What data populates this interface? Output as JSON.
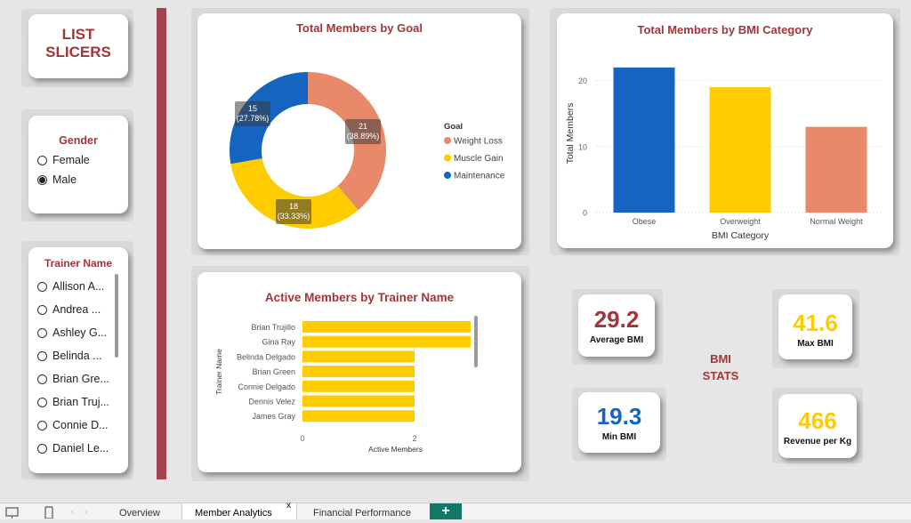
{
  "slicers_label": "LIST\nSLICERS",
  "gender": {
    "title": "Gender",
    "options": [
      {
        "label": "Female",
        "selected": false
      },
      {
        "label": "Male",
        "selected": true
      }
    ]
  },
  "trainer": {
    "title": "Trainer Name",
    "options": [
      "Allison A...",
      "Andrea ...",
      "Ashley G...",
      "Belinda ...",
      "Brian Gre...",
      "Brian Truj...",
      "Connie D...",
      "Daniel Le..."
    ]
  },
  "donut": {
    "chart_data": {
      "type": "pie",
      "title": "Total Members by Goal",
      "legend_title": "Goal",
      "slices": [
        {
          "label": "Weight Loss",
          "value": 21,
          "pct": "38.89%",
          "color": "#e8896a"
        },
        {
          "label": "Muscle Gain",
          "value": 18,
          "pct": "33.33%",
          "color": "#ffcc00"
        },
        {
          "label": "Maintenance",
          "value": 15,
          "pct": "27.78%",
          "color": "#1565c0"
        }
      ]
    }
  },
  "bmi_bar": {
    "chart_data": {
      "type": "bar",
      "title": "Total Members by BMI Category",
      "xlabel": "BMI Category",
      "ylabel": "Total Members",
      "categories": [
        "Obese",
        "Overweight",
        "Normal Weight"
      ],
      "values": [
        22,
        19,
        13
      ],
      "colors": [
        "#1565c0",
        "#ffcc00",
        "#e8896a"
      ],
      "yticks": [
        0,
        10,
        20
      ],
      "ylim": [
        0,
        24
      ]
    }
  },
  "trainer_bar": {
    "chart_data": {
      "type": "bar",
      "orientation": "horizontal",
      "title": "Active Members by Trainer Name",
      "xlabel": "Active Members",
      "ylabel": "Trainer Name",
      "categories": [
        "Brian Trujillo",
        "Gina Ray",
        "Belinda Delgado",
        "Brian Green",
        "Connie Delgado",
        "Dennis Velez",
        "James Gray"
      ],
      "values": [
        3,
        3,
        2,
        2,
        2,
        2,
        2
      ],
      "color": "#ffcc00",
      "xticks": [
        0,
        2
      ],
      "xlim": [
        0,
        3
      ]
    }
  },
  "kpis": {
    "avg_bmi": {
      "value": "29.2",
      "label": "Average BMI",
      "color": "#a4343a"
    },
    "max_bmi": {
      "value": "41.6",
      "label": "Max BMI",
      "color": "#ffcc00"
    },
    "min_bmi": {
      "value": "19.3",
      "label": "Min BMI",
      "color": "#1565c0"
    },
    "rev_kg": {
      "value": "466",
      "label": "Revenue per Kg",
      "color": "#ffcc00"
    }
  },
  "bmi_stats_label": "BMI\nSTATS",
  "tabs": {
    "overview": "Overview",
    "member_analytics": "Member Analytics",
    "close_mark": "x",
    "financial": "Financial Performance",
    "add": "+"
  }
}
